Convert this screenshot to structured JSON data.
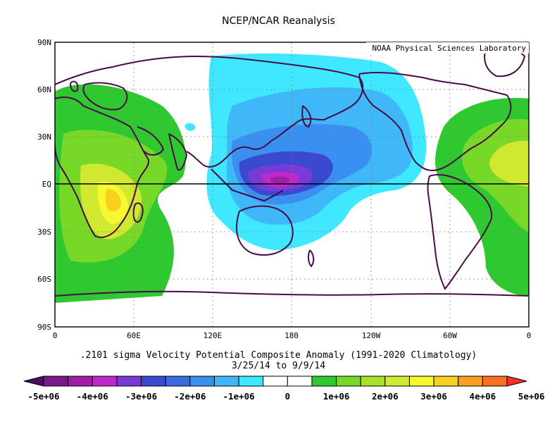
{
  "title": "NCEP/NCAR Reanalysis",
  "credit": "NOAA Physical Sciences Laboratory",
  "caption_line1": ".2101 sigma Velocity Potential  Composite Anomaly (1991-2020 Climatology)",
  "caption_line2": "3/25/14  to 9/9/14",
  "lat_labels": [
    "90N",
    "60N",
    "30N",
    "EQ",
    "30S",
    "60S",
    "90S"
  ],
  "lon_labels": [
    "0",
    "60E",
    "120E",
    "180",
    "120W",
    "60W",
    "0"
  ],
  "colorbar": {
    "labels": [
      "-5e+06",
      "-4e+06",
      "-3e+06",
      "-2e+06",
      "-1e+06",
      "0",
      "1e+06",
      "2e+06",
      "3e+06",
      "4e+06",
      "5e+06"
    ],
    "colors": [
      "#4b0f60",
      "#7a1a88",
      "#a01ea8",
      "#c028c8",
      "#7a3ad8",
      "#3a4ad0",
      "#3a6ae0",
      "#3a90f0",
      "#40b8f8",
      "#40e8ff",
      "#ffffff",
      "#ffffff",
      "#30c830",
      "#78d828",
      "#a8e028",
      "#d0e830",
      "#f8f830",
      "#f8d020",
      "#f8a020",
      "#f87020",
      "#f83020"
    ]
  },
  "colors": {
    "coast": "#4a0a48",
    "equator": "#000000",
    "grid": "#808080"
  }
}
